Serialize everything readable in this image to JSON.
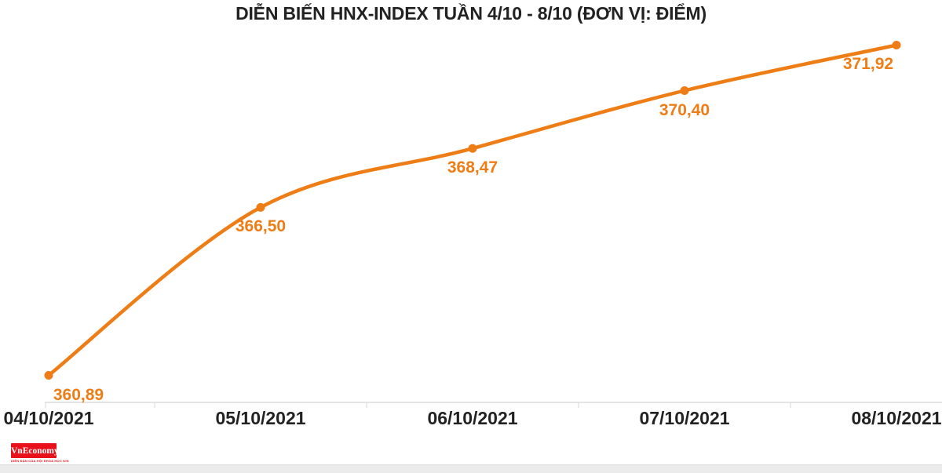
{
  "header": {
    "title": "DIỄN BIẾN HNX-INDEX TUẦN 4/10 - 8/10 (ĐƠN VỊ: ĐIỂM)"
  },
  "chart_data": {
    "type": "line",
    "title": "DIỄN BIẾN HNX-INDEX TUẦN 4/10 - 8/10 (ĐƠN VỊ: ĐIỂM)",
    "unit": "Điểm",
    "categories": [
      "04/10/2021",
      "05/10/2021",
      "06/10/2021",
      "07/10/2021",
      "08/10/2021"
    ],
    "series": [
      {
        "name": "HNX-Index",
        "values": [
          360.89,
          366.5,
          368.47,
          370.4,
          371.92
        ]
      }
    ],
    "point_labels": [
      "360,89",
      "366,50",
      "368,47",
      "370,40",
      "371,92"
    ],
    "ylim": [
      360,
      372.5
    ],
    "grid": false,
    "legend_position": "none",
    "line_color": "#ee7d16",
    "point_color": "#ee7d16",
    "data_label_color": "#ee7d16",
    "axis_line_color": "#e4e4e4",
    "tick_label_color": "#222222",
    "line_smoothing": true
  },
  "footer": {
    "logo_text": "VnEconomy",
    "logo_bg": "#e8101a",
    "tagline": "DIỄN ĐÀN CỦA HỘI KHOA HỌC KINH TẾ VIỆT NAM",
    "bar_color": "#ebebeb"
  }
}
